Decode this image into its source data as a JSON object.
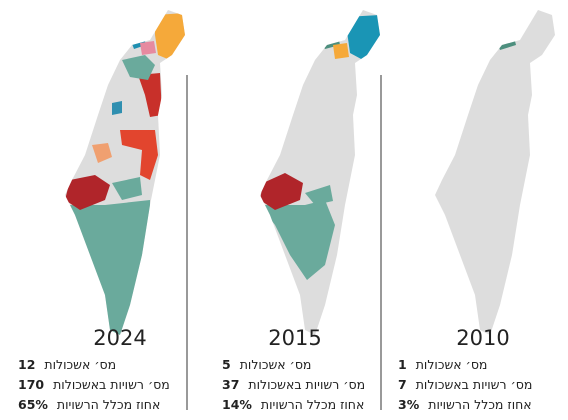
{
  "panels": [
    {
      "year": "2024",
      "stats": [
        {
          "label": "מס׳ אשכולות",
          "value": "12"
        },
        {
          "label": "מס׳ רשויות באשכולות",
          "value": "170"
        },
        {
          "label": "אחוז מכלל הרשויות",
          "value": "65%"
        }
      ]
    },
    {
      "year": "2015",
      "stats": [
        {
          "label": "מס׳ אשכולות",
          "value": "5"
        },
        {
          "label": "מס׳ רשויות באשכולות",
          "value": "37"
        },
        {
          "label": "אחוז מכלל הרשויות",
          "value": "14%"
        }
      ]
    },
    {
      "year": "2010",
      "stats": [
        {
          "label": "מס׳ אשכולות",
          "value": "1"
        },
        {
          "label": "מס׳ רשויות באשכולות",
          "value": "7"
        },
        {
          "label": "אחוז מכלל הרשויות",
          "value": "3%"
        }
      ]
    }
  ]
}
